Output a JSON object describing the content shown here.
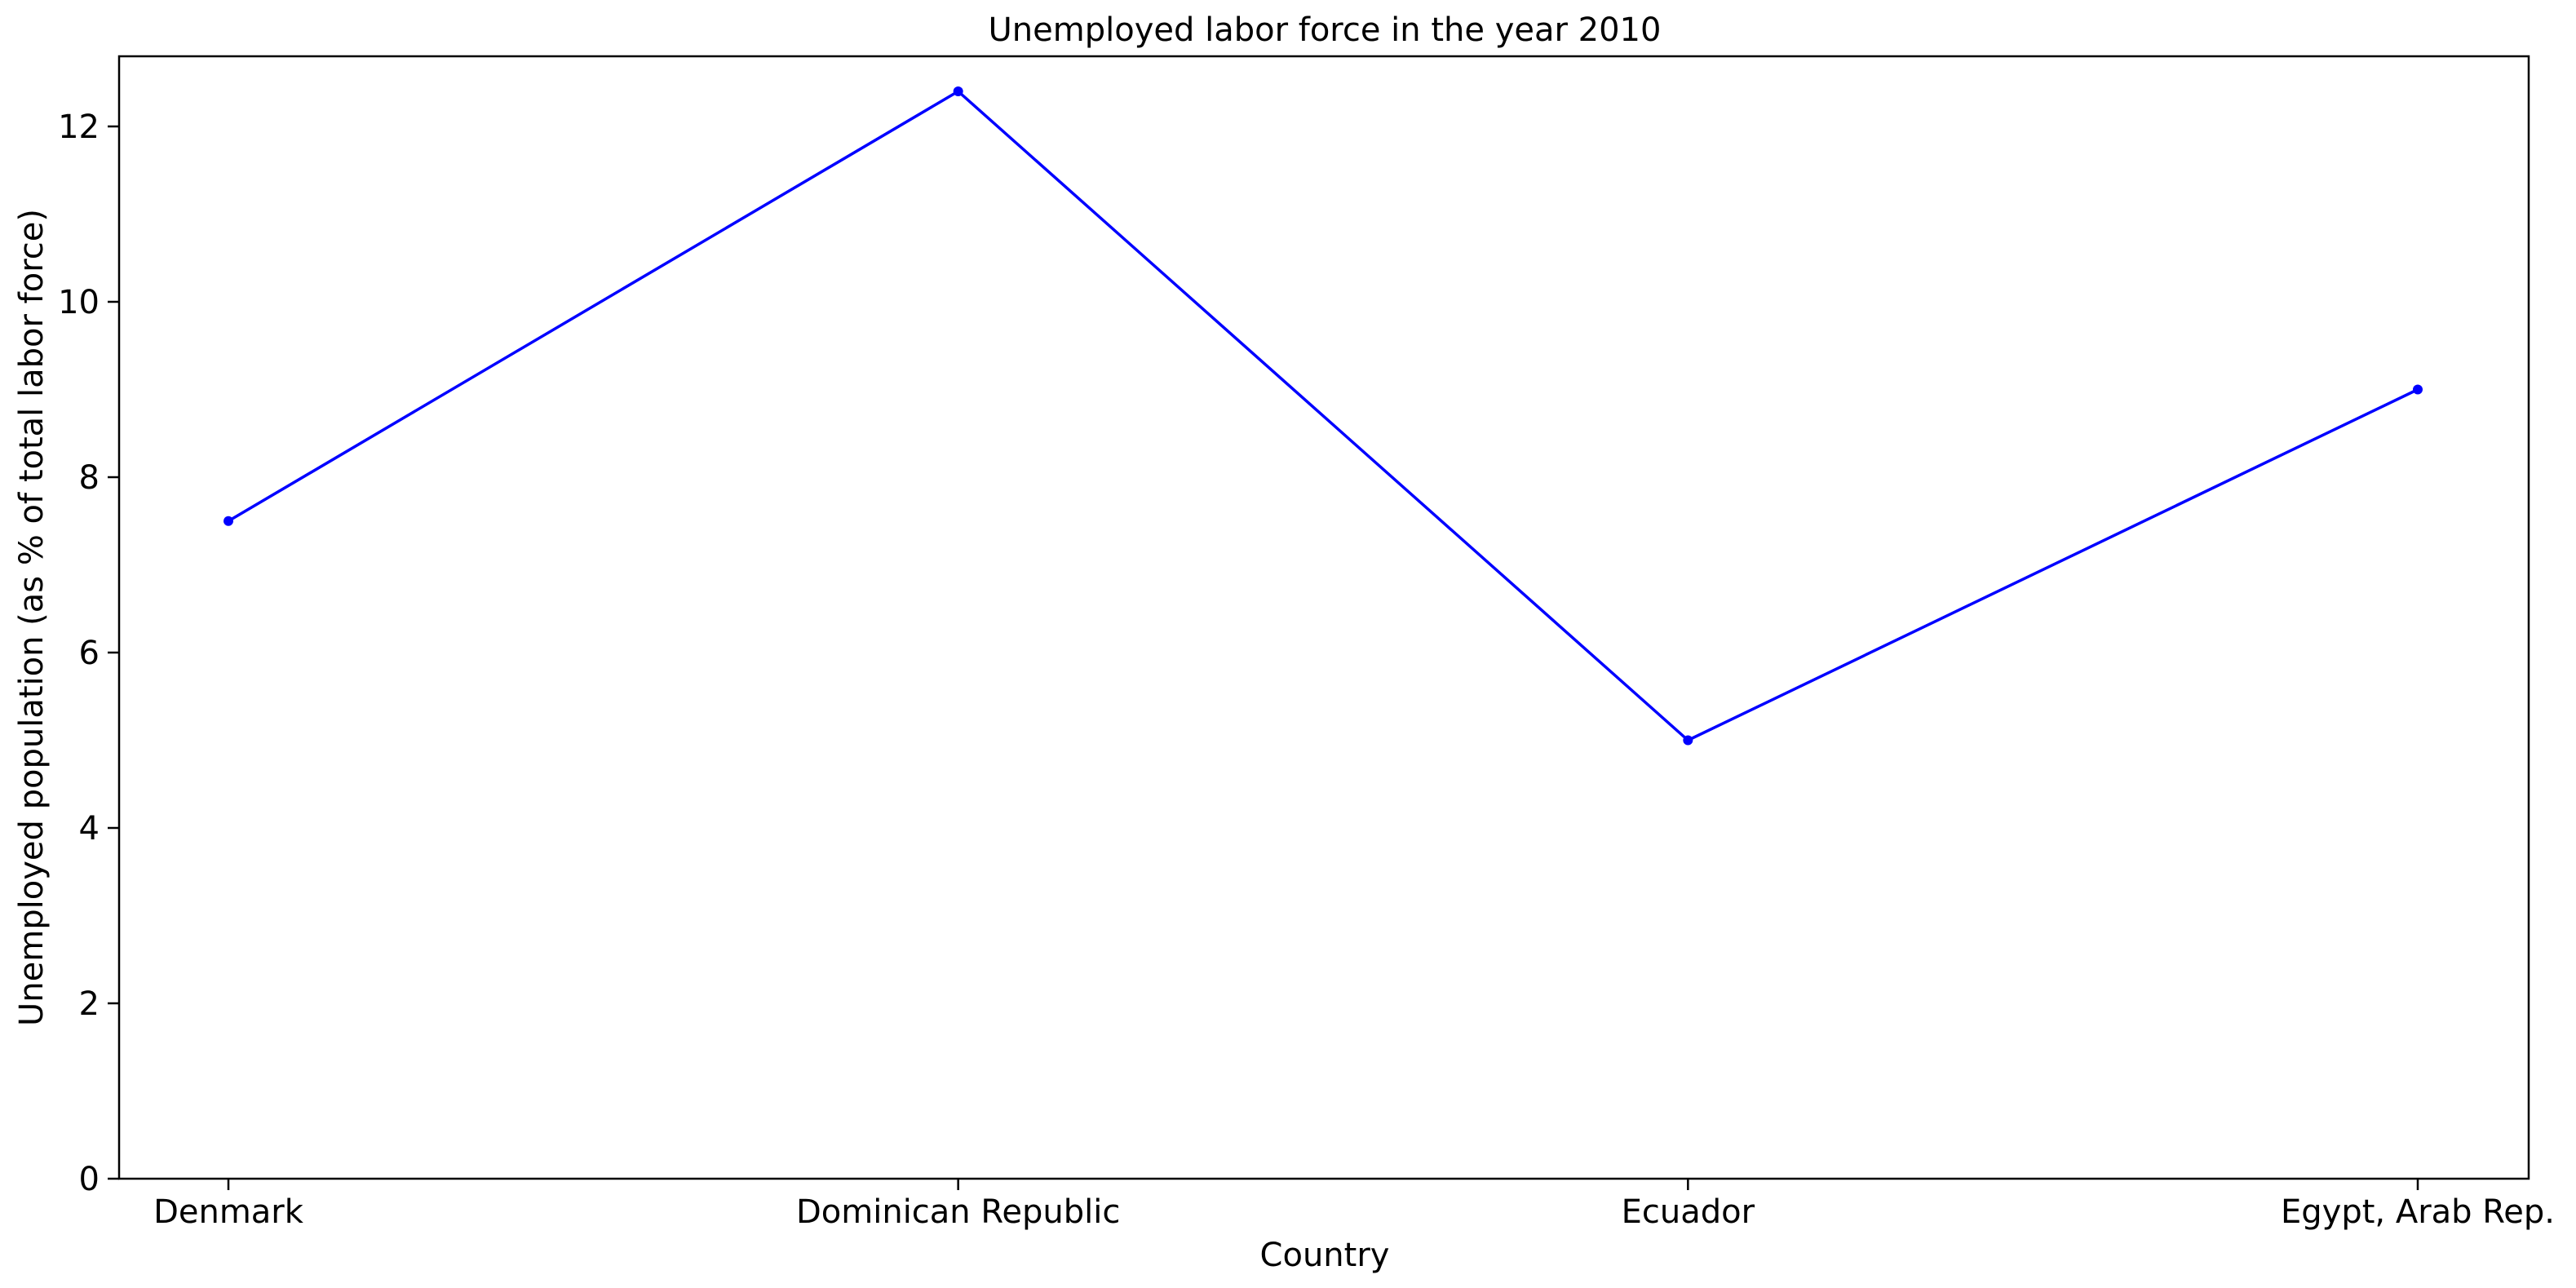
{
  "chart_data": {
    "type": "line",
    "title": "Unemployed labor force in the year 2010",
    "xlabel": "Country",
    "ylabel": "Unemployed population (as % of total labor force)",
    "categories": [
      "Denmark",
      "Dominican Republic",
      "Ecuador",
      "Egypt, Arab Rep."
    ],
    "series": [
      {
        "values": [
          7.5,
          12.4,
          5.0,
          9.0
        ],
        "color": "#0000ff",
        "marker": "dot"
      }
    ],
    "ylim": [
      0,
      12.8
    ],
    "yticks": [
      0,
      2,
      4,
      6,
      8,
      10,
      12
    ],
    "grid": false,
    "legend": "none"
  }
}
